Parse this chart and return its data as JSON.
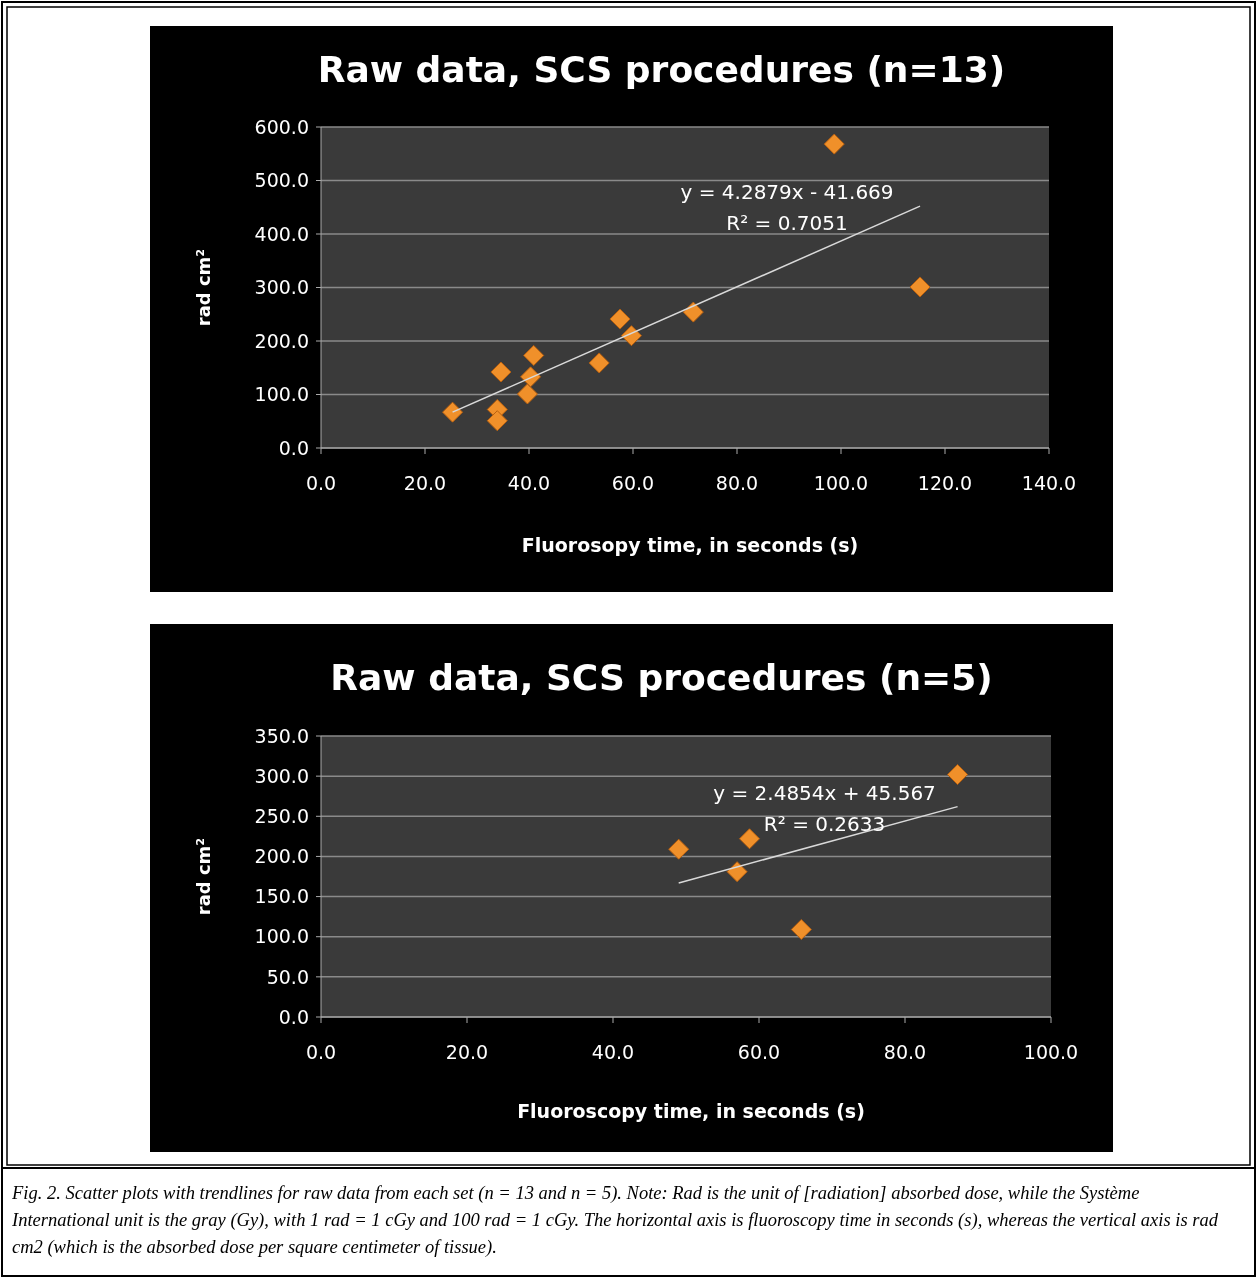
{
  "chart_data": [
    {
      "type": "scatter",
      "title": "Raw data, SCS procedures (n=13)",
      "xlabel": "Fluorosopy time, in seconds (s)",
      "ylabel": "rad cm²",
      "xlim": [
        0,
        140
      ],
      "xticks": [
        {
          "value": 0,
          "label": "0.0"
        },
        {
          "value": 20,
          "label": "20.0"
        },
        {
          "value": 40,
          "label": "40.0"
        },
        {
          "value": 60,
          "label": "60.0"
        },
        {
          "value": 80,
          "label": "80.0"
        },
        {
          "value": 100,
          "label": "100.0"
        },
        {
          "value": 120,
          "label": "120.0"
        },
        {
          "value": 140,
          "label": "140.0"
        }
      ],
      "ylim": [
        0,
        600
      ],
      "yticks": [
        {
          "value": 0,
          "label": "0.0"
        },
        {
          "value": 100,
          "label": "100.0"
        },
        {
          "value": 200,
          "label": "200.0"
        },
        {
          "value": 300,
          "label": "300.0"
        },
        {
          "value": 400,
          "label": "400.0"
        },
        {
          "value": 500,
          "label": "500.0"
        },
        {
          "value": 600,
          "label": "600.0"
        }
      ],
      "grid": "y",
      "series": [
        {
          "marker": "diamond",
          "color": "#f0902a",
          "x": [
            25.3,
            33.9,
            33.9,
            34.6,
            39.7,
            40.3,
            40.9,
            53.5,
            57.5,
            59.7,
            71.6,
            98.7,
            115.2
          ],
          "values": [
            67,
            72,
            51,
            142,
            101,
            133,
            173,
            159,
            241,
            210,
            254,
            568,
            301
          ]
        },
        {
          "type": "line",
          "marker": "none",
          "color": "#d9d9d9",
          "x": [
            25.3,
            115.2
          ],
          "values": [
            67,
            452
          ]
        }
      ],
      "annotations": [
        "y = 4.2879x - 41.669",
        "R² = 0.7051"
      ]
    },
    {
      "type": "scatter",
      "title": "Raw data, SCS procedures (n=5)",
      "xlabel": "Fluoroscopy time, in seconds (s)",
      "ylabel": "rad cm²",
      "xlim": [
        0,
        100
      ],
      "xticks": [
        {
          "value": 0,
          "label": "0.0"
        },
        {
          "value": 20,
          "label": "20.0"
        },
        {
          "value": 40,
          "label": "40.0"
        },
        {
          "value": 60,
          "label": "60.0"
        },
        {
          "value": 80,
          "label": "80.0"
        },
        {
          "value": 100,
          "label": "100.0"
        }
      ],
      "ylim": [
        0,
        350
      ],
      "yticks": [
        {
          "value": 0,
          "label": "0.0"
        },
        {
          "value": 50,
          "label": "50.0"
        },
        {
          "value": 100,
          "label": "100.0"
        },
        {
          "value": 150,
          "label": "150.0"
        },
        {
          "value": 200,
          "label": "200.0"
        },
        {
          "value": 250,
          "label": "250.0"
        },
        {
          "value": 300,
          "label": "300.0"
        },
        {
          "value": 350,
          "label": "350.0"
        }
      ],
      "grid": "y",
      "series": [
        {
          "marker": "diamond",
          "color": "#f0902a",
          "x": [
            49.0,
            57.0,
            58.7,
            65.8,
            87.2
          ],
          "values": [
            209,
            181,
            222,
            109,
            302
          ]
        },
        {
          "type": "line",
          "marker": "none",
          "color": "#d9d9d9",
          "x": [
            49.0,
            87.2
          ],
          "values": [
            167,
            262
          ]
        }
      ],
      "annotations": [
        "y = 2.4854x + 45.567",
        "R² = 0.2633",
        "Fig. 2. Scatter plots with trendlines for raw data from each set (n = 13 and n = 5). Note: Rad is the unit of [radiation] absorbed dose, while the Système International unit is the gray (Gy), with 1 rad = 1 cGy and 100 rad = 1 cGy. The horizontal axis is fluoroscopy time in seconds (s), whereas the vertical axis is rad cm2 (which is the absorbed dose per square centimeter of tissue)."
      ]
    }
  ]
}
